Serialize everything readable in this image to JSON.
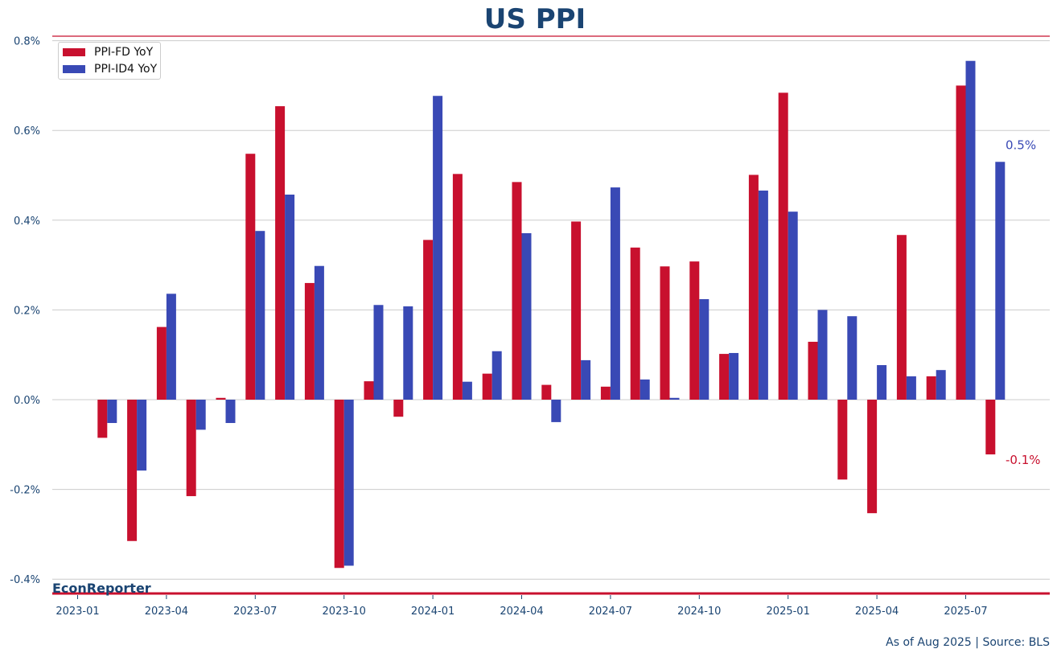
{
  "brand": "EconReporter",
  "footer": {
    "source_note": "As of Aug 2025 | Source: BLS"
  },
  "colors": {
    "accent_red": "#c8102e",
    "series_fd": "#c8102e",
    "series_id4": "#3949b5",
    "text": "#1a4472",
    "grid": "#cccccc"
  },
  "chart_data": {
    "type": "bar",
    "title": "US PPI",
    "xlabel": "",
    "ylabel": "",
    "categories": [
      "2023-01",
      "2023-02",
      "2023-03",
      "2023-04",
      "2023-05",
      "2023-06",
      "2023-07",
      "2023-08",
      "2023-09",
      "2023-10",
      "2023-11",
      "2023-12",
      "2024-01",
      "2024-02",
      "2024-03",
      "2024-04",
      "2024-05",
      "2024-06",
      "2024-07",
      "2024-08",
      "2024-09",
      "2024-10",
      "2024-11",
      "2024-12",
      "2025-01",
      "2025-02",
      "2025-03",
      "2025-04",
      "2025-05",
      "2025-06",
      "2025-07",
      "2025-08"
    ],
    "x_tick_labels": [
      "2023-01",
      "2023-04",
      "2023-07",
      "2023-10",
      "2024-01",
      "2024-04",
      "2024-07",
      "2024-10",
      "2025-01",
      "2025-04",
      "2025-07"
    ],
    "y_tick_labels": [
      "0.8%",
      "0.6%",
      "0.4%",
      "0.2%",
      "0.0%",
      "-0.2%",
      "-0.4%"
    ],
    "ylim": [
      -0.4,
      0.8
    ],
    "y_ticks": [
      0.8,
      0.6,
      0.4,
      0.2,
      0.0,
      -0.2,
      -0.4
    ],
    "grid": true,
    "legend_position": "top-left",
    "series": [
      {
        "name": "PPI-FD YoY",
        "color": "#c8102e",
        "values": [
          null,
          -0.085,
          -0.315,
          0.162,
          -0.215,
          0.004,
          0.548,
          0.654,
          0.26,
          -0.375,
          0.041,
          -0.038,
          0.356,
          0.503,
          0.058,
          0.485,
          0.033,
          0.397,
          0.029,
          0.339,
          0.297,
          0.308,
          0.102,
          0.501,
          0.684,
          0.129,
          -0.178,
          -0.253,
          0.367,
          0.052,
          0.7,
          -0.122
        ]
      },
      {
        "name": "PPI-ID4 YoY",
        "color": "#3949b5",
        "values": [
          null,
          -0.052,
          -0.158,
          0.236,
          -0.067,
          -0.052,
          0.376,
          0.457,
          0.298,
          -0.37,
          0.211,
          0.208,
          0.677,
          0.04,
          0.108,
          0.371,
          -0.05,
          0.088,
          0.473,
          0.045,
          0.004,
          0.224,
          0.104,
          0.466,
          0.419,
          0.2,
          0.186,
          0.077,
          0.052,
          0.066,
          0.755,
          0.53
        ]
      }
    ],
    "annotations": [
      {
        "text": "0.5%",
        "series": "PPI-ID4 YoY",
        "color": "#3949b5"
      },
      {
        "text": "-0.1%",
        "series": "PPI-FD YoY",
        "color": "#c8102e"
      }
    ]
  }
}
